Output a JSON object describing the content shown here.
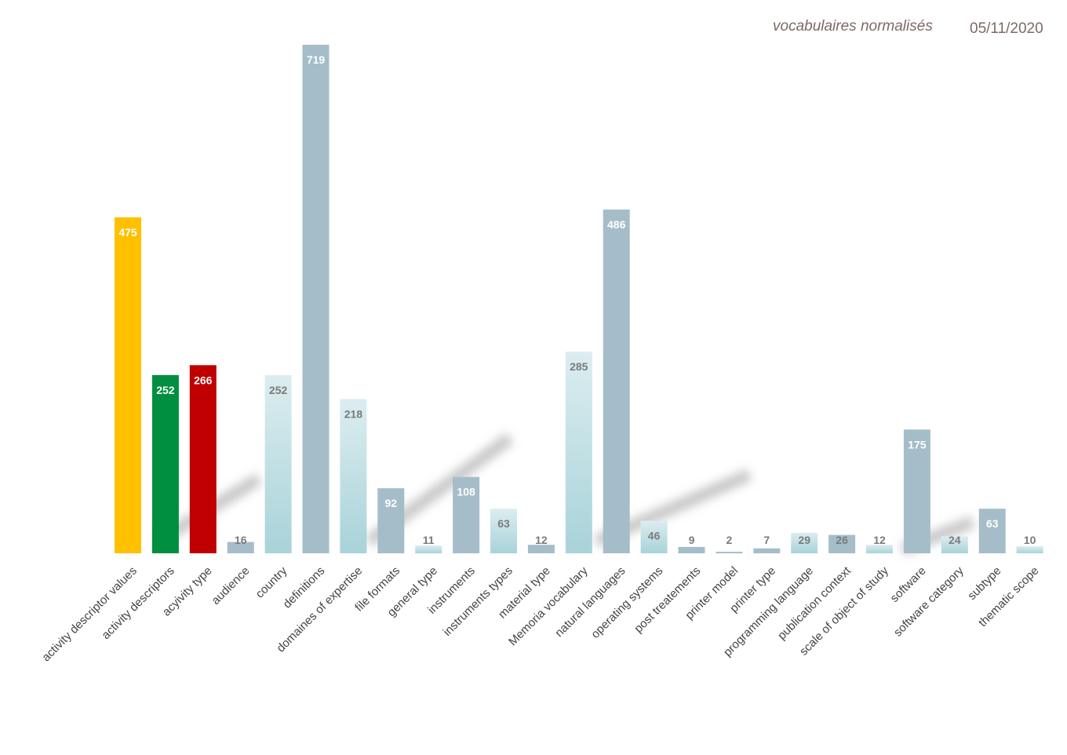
{
  "header": {
    "title": "vocabulaires normalisés",
    "date": "05/11/2020"
  },
  "colors": {
    "default_bar": "#a5bdc9",
    "light_bar_top": "#dcedf0",
    "light_bar_bottom": "#a8d3d9",
    "label_white": "#ffffff",
    "label_grey": "#7a7a7a",
    "category_text": "#444444"
  },
  "chart_data": {
    "type": "bar",
    "categories": [
      "activity descriptor values",
      "activity descriptors",
      "acyivity type",
      "audience",
      "country",
      "definitions",
      "domaines of expertise",
      "file formats",
      "general type",
      "instruments",
      "instruments types",
      "material type",
      "Memoria vocabulary",
      "natural languages",
      "operating systems",
      "post treatements",
      "printer model",
      "printer type",
      "programming language",
      "publication context",
      "scale of object of study",
      "software",
      "software category",
      "subtype",
      "thematic scope"
    ],
    "values": [
      475,
      252,
      266,
      16,
      252,
      719,
      218,
      92,
      11,
      108,
      63,
      12,
      285,
      486,
      46,
      9,
      2,
      7,
      29,
      26,
      12,
      175,
      24,
      63,
      10
    ],
    "bar_styles": [
      "yellow",
      "green",
      "red",
      "blue",
      "light",
      "blue",
      "light",
      "blue",
      "light",
      "blue",
      "light",
      "blue",
      "light",
      "blue",
      "light",
      "blue",
      "blue",
      "blue",
      "light",
      "blue",
      "light",
      "blue",
      "light",
      "blue",
      "light"
    ],
    "style_colors": {
      "yellow": "#ffc000",
      "green": "#008e40",
      "red": "#c00000",
      "blue": "#a5bdc9",
      "light": "gradient"
    },
    "ylim": [
      0,
      719
    ],
    "grid": false,
    "legend": "none"
  }
}
